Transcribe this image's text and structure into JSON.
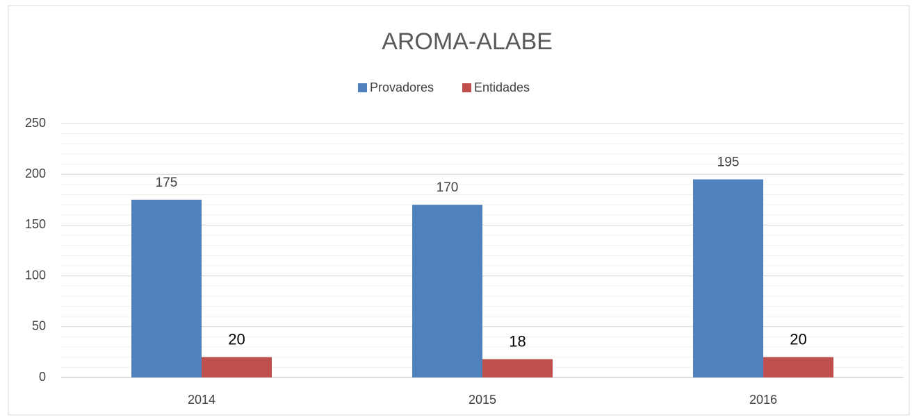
{
  "chart_data": {
    "type": "bar",
    "title": "AROMA-ALABE",
    "categories": [
      "2014",
      "2015",
      "2016"
    ],
    "series": [
      {
        "name": "Provadores",
        "color": "#4f81bd",
        "values": [
          175,
          170,
          195
        ]
      },
      {
        "name": "Entidades",
        "color": "#c0504d",
        "values": [
          20,
          18,
          20
        ]
      }
    ],
    "ylim": [
      0,
      250
    ],
    "yticks": [
      0,
      50,
      100,
      150,
      200,
      250
    ],
    "grid": true,
    "minor_grid": true,
    "legend": "top"
  }
}
